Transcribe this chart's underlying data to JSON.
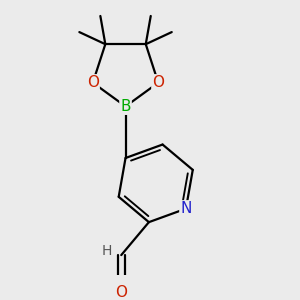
{
  "background_color": "#ebebeb",
  "atom_colors": {
    "N": "#2222cc",
    "O": "#cc2200",
    "B": "#00aa00",
    "C": "#000000",
    "H": "#555555"
  },
  "bond_color": "#000000",
  "bond_width": 1.6,
  "font_size_atom": 11,
  "font_size_methyl": 9,
  "figsize": [
    3.0,
    3.0
  ],
  "dpi": 100
}
